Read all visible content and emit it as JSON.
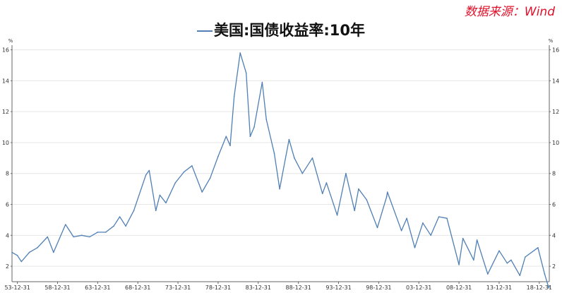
{
  "source_note": "数据来源：Wind",
  "chart_data": {
    "type": "line",
    "title": "美国:国债收益率:10年",
    "unit_left": "%",
    "unit_right": "%",
    "ylim": [
      1,
      16.3
    ],
    "y_ticks": [
      2,
      4,
      6,
      8,
      10,
      12,
      14,
      16
    ],
    "y_tick_labels": [
      "2",
      "4",
      "6",
      "8",
      "10",
      "12",
      "14",
      "16"
    ],
    "x_tick_dates": [
      "1953-12-31",
      "1958-12-31",
      "1963-12-31",
      "1968-12-31",
      "1973-12-31",
      "1978-12-31",
      "1983-12-31",
      "1988-12-31",
      "1993-12-31",
      "1998-12-31",
      "2003-12-31",
      "2008-12-31",
      "2013-12-31",
      "2018-12-31"
    ],
    "x_tick_labels": [
      "53-12-31",
      "58-12-31",
      "63-12-31",
      "68-12-31",
      "73-12-31",
      "78-12-31",
      "83-12-31",
      "88-12-31",
      "93-12-31",
      "98-12-31",
      "03-12-31",
      "08-12-31",
      "13-12-31",
      "18-12-31"
    ],
    "xlim": [
      "1953-04-30",
      "2020-03-31"
    ],
    "grid": true,
    "colors": {
      "line": "#4f7fb4",
      "grid": "#e6e6e6",
      "axis": "#666666",
      "source": "#e0112a"
    },
    "series": [
      {
        "name": "美国:国债收益率:10年",
        "x": [
          "1953-04-30",
          "1953-12-31",
          "1954-06-30",
          "1955-06-30",
          "1956-06-30",
          "1957-09-30",
          "1958-06-30",
          "1959-12-31",
          "1960-12-31",
          "1961-12-31",
          "1962-12-31",
          "1963-12-31",
          "1964-12-31",
          "1965-12-31",
          "1966-09-30",
          "1967-06-30",
          "1968-06-30",
          "1969-12-31",
          "1970-05-31",
          "1971-03-31",
          "1971-09-30",
          "1972-06-30",
          "1973-08-31",
          "1974-09-30",
          "1975-09-30",
          "1976-12-31",
          "1977-12-31",
          "1978-12-31",
          "1979-12-31",
          "1980-06-30",
          "1980-12-31",
          "1981-09-30",
          "1982-06-30",
          "1982-12-31",
          "1983-06-30",
          "1984-06-30",
          "1984-12-31",
          "1985-12-31",
          "1986-08-31",
          "1987-10-31",
          "1988-06-30",
          "1989-06-30",
          "1990-09-30",
          "1991-12-31",
          "1992-06-30",
          "1993-10-31",
          "1994-11-30",
          "1995-12-31",
          "1996-06-30",
          "1997-06-30",
          "1998-10-31",
          "1999-12-31",
          "2000-01-31",
          "2001-10-31",
          "2002-06-30",
          "2003-06-30",
          "2004-06-30",
          "2005-06-30",
          "2006-06-30",
          "2007-06-30",
          "2008-12-31",
          "2009-06-30",
          "2010-10-31",
          "2011-03-31",
          "2012-07-31",
          "2013-12-31",
          "2014-12-31",
          "2015-06-30",
          "2016-07-31",
          "2017-03-31",
          "2018-10-31",
          "2019-08-31",
          "2020-03-09",
          "2020-03-31"
        ],
        "values": [
          2.9,
          2.7,
          2.3,
          2.9,
          3.2,
          3.9,
          2.9,
          4.7,
          3.9,
          4.0,
          3.9,
          4.2,
          4.2,
          4.6,
          5.2,
          4.6,
          5.6,
          7.9,
          8.2,
          5.6,
          6.6,
          6.1,
          7.4,
          8.1,
          8.5,
          6.8,
          7.7,
          9.1,
          10.4,
          9.8,
          13.0,
          15.8,
          14.5,
          10.4,
          11.0,
          13.9,
          11.5,
          9.3,
          7.0,
          10.2,
          9.0,
          8.0,
          9.0,
          6.7,
          7.4,
          5.3,
          8.0,
          5.6,
          7.0,
          6.3,
          4.5,
          6.5,
          6.8,
          4.3,
          5.1,
          3.2,
          4.8,
          4.0,
          5.2,
          5.1,
          2.1,
          3.8,
          2.4,
          3.7,
          1.5,
          3.0,
          2.2,
          2.4,
          1.4,
          2.6,
          3.2,
          1.5,
          0.6,
          0.7
        ]
      }
    ]
  }
}
